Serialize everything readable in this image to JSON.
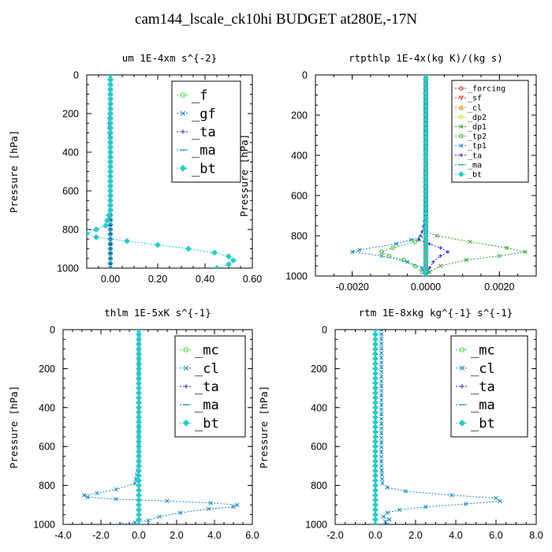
{
  "title": "cam144_lscale_ck10hi  BUDGET at280E,-17N",
  "chart_data": [
    {
      "type": "line",
      "title": "um  1E-4xm s^{-2}",
      "xlabel": "",
      "ylabel": "Pressure [hPa]",
      "xlim": [
        -0.1,
        0.6
      ],
      "ylim": [
        1000,
        0
      ],
      "xticks": [
        0.0,
        0.2,
        0.4,
        0.6
      ],
      "xtick_labels": [
        "0.00",
        "0.20",
        "0.40",
        "0.60"
      ],
      "yticks": [
        0,
        200,
        400,
        600,
        800,
        1000
      ],
      "legend_pos": "top-right",
      "legend_size": "large",
      "series": [
        {
          "name": "_f",
          "color": "#44dd44",
          "marker": "circle",
          "y": [
            0,
            100,
            200,
            300,
            400,
            500,
            600,
            700,
            800,
            900,
            1000
          ],
          "x": [
            0,
            0,
            0,
            0,
            0,
            0,
            0,
            0,
            0,
            0,
            0
          ]
        },
        {
          "name": "_gf",
          "color": "#1188cc",
          "marker": "x",
          "y": [
            0,
            100,
            200,
            300,
            400,
            500,
            600,
            700,
            800,
            900,
            1000
          ],
          "x": [
            0,
            0,
            0,
            0,
            0,
            0,
            0,
            0,
            0,
            0,
            0
          ]
        },
        {
          "name": "_ta",
          "color": "#2222cc",
          "marker": "plus",
          "y": [
            0,
            100,
            150,
            200,
            250,
            300,
            350,
            400,
            500,
            600,
            700,
            780,
            820,
            850,
            870,
            880,
            900,
            920,
            950,
            980,
            1000
          ],
          "x": [
            0,
            0.001,
            -0.002,
            -0.004,
            -0.008,
            -0.006,
            -0.003,
            -0.002,
            0,
            0,
            0,
            0,
            0,
            0,
            0,
            0,
            0,
            0,
            0,
            0,
            0
          ]
        },
        {
          "name": "_ma",
          "color": "#1188cc",
          "marker": "dash",
          "y": [
            0,
            200,
            400,
            600,
            800,
            1000
          ],
          "x": [
            0,
            0,
            0,
            0,
            0,
            0
          ]
        },
        {
          "name": "_bt",
          "color": "#22cccc",
          "marker": "diamond",
          "y": [
            0,
            100,
            200,
            300,
            400,
            500,
            600,
            700,
            780,
            820,
            840,
            860,
            880,
            900,
            920,
            940,
            960,
            980,
            1000
          ],
          "x": [
            0,
            0,
            0,
            0,
            0,
            0,
            0,
            0,
            -0.02,
            -0.1,
            -0.06,
            0.07,
            0.2,
            0.33,
            0.44,
            0.5,
            0.52,
            0.5,
            0.45
          ]
        }
      ]
    },
    {
      "type": "line",
      "title": "rtpthlp  1E-4x(kg K)/(kg s)",
      "xlabel": "",
      "ylabel": "Pressure [hPa]",
      "xlim": [
        -0.003,
        0.003
      ],
      "ylim": [
        1000,
        0
      ],
      "xticks": [
        -0.002,
        0.0,
        0.002
      ],
      "xtick_labels": [
        "-0.0020",
        "0.0000",
        "0.0020"
      ],
      "yticks": [
        0,
        200,
        400,
        600,
        800,
        1000
      ],
      "legend_pos": "top-right",
      "legend_size": "small",
      "series": [
        {
          "name": "_forcing",
          "color": "#cc2222",
          "marker": "circle",
          "y": [
            0,
            100,
            200,
            300,
            400,
            500,
            600,
            700,
            800,
            900,
            1000
          ],
          "x": [
            0,
            0,
            0,
            0,
            0,
            0,
            0,
            0,
            0,
            0,
            0
          ]
        },
        {
          "name": "_sf",
          "color": "#ee3333",
          "marker": "triangle-down",
          "y": [
            0,
            200,
            400,
            600,
            800,
            1000
          ],
          "x": [
            0,
            0,
            0,
            0,
            0,
            0
          ]
        },
        {
          "name": "_cl",
          "color": "#ee8800",
          "marker": "triangle",
          "y": [
            0,
            200,
            400,
            600,
            800,
            1000
          ],
          "x": [
            0,
            0,
            0,
            0,
            0,
            0
          ]
        },
        {
          "name": "_dp2",
          "color": "#dddd00",
          "marker": "circle",
          "y": [
            0,
            200,
            400,
            600,
            800,
            1000
          ],
          "x": [
            0,
            0,
            0,
            0,
            0,
            0
          ]
        },
        {
          "name": "_dp1",
          "color": "#22aa22",
          "marker": "x",
          "y": [
            0,
            700,
            780,
            800,
            830,
            860,
            880,
            900,
            920,
            950,
            980,
            1000
          ],
          "x": [
            0,
            0,
            0,
            0.0003,
            0.0012,
            0.0022,
            0.0027,
            0.002,
            0.0011,
            0.0004,
            0.0001,
            0
          ]
        },
        {
          "name": "_tp2",
          "color": "#33bb33",
          "marker": "circle",
          "y": [
            0,
            700,
            800,
            830,
            860,
            880,
            900,
            920,
            950,
            980,
            1000
          ],
          "x": [
            0,
            0,
            0,
            -0.0003,
            -0.0009,
            -0.0012,
            -0.001,
            -0.0006,
            -0.0003,
            -0.0001,
            0
          ]
        },
        {
          "name": "_tp1",
          "color": "#1188cc",
          "marker": "x",
          "y": [
            0,
            700,
            800,
            840,
            870,
            880,
            900,
            930,
            960,
            1000
          ],
          "x": [
            0,
            0,
            0,
            -0.0008,
            -0.0018,
            -0.002,
            -0.0012,
            -0.0005,
            -0.0001,
            0
          ]
        },
        {
          "name": "_ta",
          "color": "#2222cc",
          "marker": "plus",
          "y": [
            0,
            700,
            780,
            820,
            860,
            880,
            900,
            930,
            960,
            1000
          ],
          "x": [
            0,
            0,
            -0.0001,
            -0.0002,
            0.0004,
            0.0006,
            0.0004,
            0.0002,
            0.0001,
            0
          ]
        },
        {
          "name": "_ma",
          "color": "#1188cc",
          "marker": "dash",
          "y": [
            0,
            200,
            400,
            600,
            800,
            1000
          ],
          "x": [
            0,
            0,
            0,
            0,
            0,
            0
          ]
        },
        {
          "name": "_bt",
          "color": "#22cccc",
          "marker": "diamond",
          "y": [
            0,
            200,
            400,
            600,
            800,
            1000
          ],
          "x": [
            0,
            0,
            0,
            0,
            0,
            0
          ]
        }
      ]
    },
    {
      "type": "line",
      "title": "thlm  1E-5xK s^{-1}",
      "xlabel": "",
      "ylabel": "Pressure [hPa]",
      "xlim": [
        -4.0,
        6.0
      ],
      "ylim": [
        1000,
        0
      ],
      "xticks": [
        -4.0,
        -2.0,
        0.0,
        2.0,
        4.0,
        6.0
      ],
      "xtick_labels": [
        "-4.0",
        "-2.0",
        "0.0",
        "2.0",
        "4.0",
        "6.0"
      ],
      "yticks": [
        0,
        200,
        400,
        600,
        800,
        1000
      ],
      "legend_pos": "top-right",
      "legend_size": "large",
      "series": [
        {
          "name": "_mc",
          "color": "#44dd44",
          "marker": "circle",
          "y": [
            0,
            100,
            200,
            300,
            400,
            500,
            600,
            700,
            800,
            900,
            1000
          ],
          "x": [
            0,
            0,
            0,
            0,
            0,
            0,
            0,
            0,
            0,
            0,
            0
          ]
        },
        {
          "name": "_cl",
          "color": "#1188cc",
          "marker": "x",
          "y": [
            0,
            700,
            790,
            820,
            840,
            850,
            860,
            870,
            880,
            890,
            900,
            910,
            920,
            940,
            960,
            980,
            990,
            1000
          ],
          "x": [
            0,
            0,
            -0.2,
            -1.2,
            -2.2,
            -2.9,
            -2.7,
            -1.2,
            1.5,
            3.8,
            5.2,
            5,
            3.7,
            2.2,
            1.1,
            0.5,
            -0.2,
            -0.9
          ]
        },
        {
          "name": "_ta",
          "color": "#2222cc",
          "marker": "plus",
          "y": [
            0,
            200,
            400,
            600,
            800,
            1000
          ],
          "x": [
            0,
            0,
            0,
            0,
            0,
            0
          ]
        },
        {
          "name": "_ma",
          "color": "#1188cc",
          "marker": "dash",
          "y": [
            0,
            200,
            400,
            600,
            800,
            1000
          ],
          "x": [
            0,
            0,
            0,
            0,
            0,
            0
          ]
        },
        {
          "name": "_bt",
          "color": "#22cccc",
          "marker": "diamond",
          "y": [
            0,
            200,
            400,
            600,
            800,
            1000
          ],
          "x": [
            0,
            0,
            0,
            0,
            0,
            0
          ]
        }
      ]
    },
    {
      "type": "line",
      "title": "rtm  1E-8xkg kg^{-1} s^{-1}",
      "xlabel": "",
      "ylabel": "Pressure [hPa]",
      "xlim": [
        -2.0,
        8.0
      ],
      "ylim": [
        1000,
        0
      ],
      "xticks": [
        -2.0,
        0.0,
        2.0,
        4.0,
        6.0,
        8.0
      ],
      "xtick_labels": [
        "-2.0",
        "0.0",
        "2.0",
        "4.0",
        "6.0",
        "8.0"
      ],
      "yticks": [
        0,
        200,
        400,
        600,
        800,
        1000
      ],
      "legend_pos": "top-right",
      "legend_size": "large",
      "series": [
        {
          "name": "_mc",
          "color": "#44dd44",
          "marker": "circle",
          "y": [
            0,
            100,
            200,
            300,
            400,
            500,
            600,
            700,
            800,
            900,
            1000
          ],
          "x": [
            0,
            0,
            0,
            0,
            0,
            0,
            0,
            0,
            0,
            0,
            0
          ]
        },
        {
          "name": "_cl",
          "color": "#1188cc",
          "marker": "x",
          "y": [
            0,
            700,
            790,
            810,
            830,
            850,
            865,
            880,
            895,
            910,
            925,
            940,
            960,
            975,
            985,
            1000
          ],
          "x": [
            0.3,
            0.3,
            0.35,
            0.6,
            1.5,
            3.8,
            6.0,
            6.2,
            4.5,
            2.5,
            1.2,
            0.6,
            0.4,
            0.7,
            0.5,
            0.6
          ]
        },
        {
          "name": "_ta",
          "color": "#2222cc",
          "marker": "plus",
          "y": [
            0,
            200,
            400,
            600,
            800,
            1000
          ],
          "x": [
            0,
            0,
            0,
            0,
            0,
            0
          ]
        },
        {
          "name": "_ma",
          "color": "#1188cc",
          "marker": "dash",
          "y": [
            0,
            200,
            400,
            600,
            800,
            1000
          ],
          "x": [
            0,
            0,
            0,
            0,
            0,
            0
          ]
        },
        {
          "name": "_bt",
          "color": "#22cccc",
          "marker": "diamond",
          "y": [
            0,
            200,
            400,
            600,
            800,
            1000
          ],
          "x": [
            0,
            0,
            0,
            0,
            0,
            0
          ]
        }
      ]
    }
  ]
}
